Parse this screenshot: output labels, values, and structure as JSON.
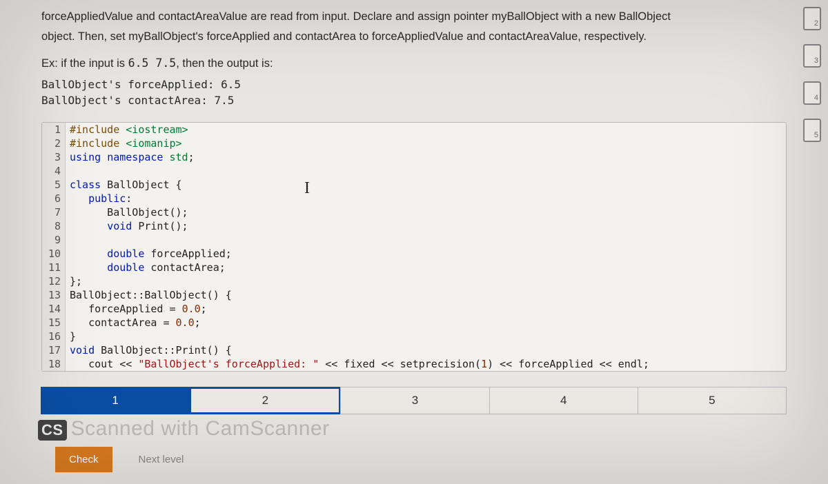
{
  "problem": {
    "p1_a": "forceAppliedValue and contactAreaValue are read from input. Declare and assign pointer myBallObject with a new BallObject",
    "p1_b": "object. Then, set myBallObject's forceApplied and contactArea to forceAppliedValue and contactAreaValue, respectively.",
    "ex_prefix": "Ex: if the input is ",
    "ex_input": "6.5 7.5",
    "ex_suffix": ", then the output is:",
    "out1": "BallObject's forceApplied: 6.5",
    "out2": "BallObject's contactArea: 7.5"
  },
  "code": {
    "lines": [
      {
        "n": "1",
        "html": "<span class='pp'>#include</span> <span class='inc'>&lt;iostream&gt;</span>"
      },
      {
        "n": "2",
        "html": "<span class='pp'>#include</span> <span class='inc'>&lt;iomanip&gt;</span>"
      },
      {
        "n": "3",
        "html": "<span class='kw'>using</span> <span class='kw'>namespace</span> <span class='ns'>std</span>;"
      },
      {
        "n": "4",
        "html": ""
      },
      {
        "n": "5",
        "html": "<span class='kw'>class</span> BallObject {"
      },
      {
        "n": "6",
        "html": "   <span class='kw'>public</span>:"
      },
      {
        "n": "7",
        "html": "      BallObject();"
      },
      {
        "n": "8",
        "html": "      <span class='type'>void</span> Print();"
      },
      {
        "n": "9",
        "html": ""
      },
      {
        "n": "10",
        "html": "      <span class='type'>double</span> forceApplied;"
      },
      {
        "n": "11",
        "html": "      <span class='type'>double</span> contactArea;"
      },
      {
        "n": "12",
        "html": "};"
      },
      {
        "n": "13",
        "html": "BallObject::BallObject() {"
      },
      {
        "n": "14",
        "html": "   forceApplied = <span class='num'>0.0</span>;"
      },
      {
        "n": "15",
        "html": "   contactArea = <span class='num'>0.0</span>;"
      },
      {
        "n": "16",
        "html": "}"
      },
      {
        "n": "17",
        "html": "<span class='type'>void</span> BallObject::Print() {"
      },
      {
        "n": "18",
        "html": "   cout &lt;&lt; <span class='str'>\"BallObject's forceApplied: \"</span> &lt;&lt; fixed &lt;&lt; setprecision(<span class='num'>1</span>) &lt;&lt; forceApplied &lt;&lt; endl;"
      }
    ]
  },
  "steps": [
    "1",
    "2",
    "3",
    "4",
    "5"
  ],
  "active_step": 0,
  "current_step": 1,
  "watermark": "Scanned with CamScanner",
  "cs_badge": "CS",
  "buttons": {
    "check": "Check",
    "next": "Next level"
  },
  "side_pages": [
    "2",
    "3",
    "4",
    "5"
  ],
  "colors": {
    "bg": "#e8e6e3",
    "code_bg": "#f4f2ef",
    "active_step": "#0a4ea3",
    "btn": "#d97a1f"
  }
}
